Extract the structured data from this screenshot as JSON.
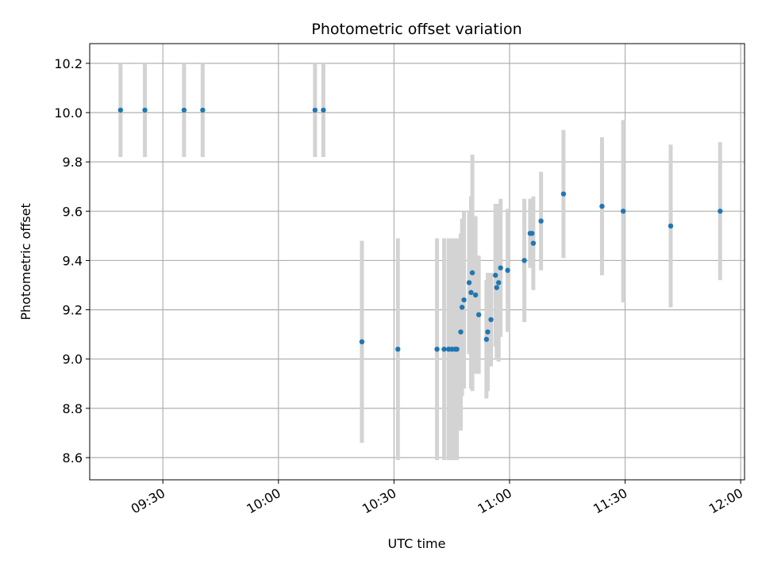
{
  "chart_data": {
    "type": "scatter",
    "title": "Photometric offset variation",
    "xlabel": "UTC time",
    "ylabel": "Photometric offset",
    "xlim": [
      "09:11",
      "12:01"
    ],
    "ylim": [
      8.51,
      10.28
    ],
    "x_ticks": [
      "09:30",
      "10:00",
      "10:30",
      "11:00",
      "11:30",
      "12:00"
    ],
    "y_ticks": [
      "8.6",
      "8.8",
      "9.0",
      "9.2",
      "9.4",
      "9.6",
      "9.8",
      "10.0",
      "10.2"
    ],
    "grid": true,
    "colors": {
      "marker": "#1f77b4",
      "errorbar": "#d3d3d3",
      "grid": "#b0b0b0"
    },
    "series": [
      {
        "points": [
          {
            "x": "09:19:00",
            "y": 10.01,
            "err": 0.19
          },
          {
            "x": "09:25:20",
            "y": 10.01,
            "err": 0.19
          },
          {
            "x": "09:35:30",
            "y": 10.01,
            "err": 0.19
          },
          {
            "x": "09:40:20",
            "y": 10.01,
            "err": 0.19
          },
          {
            "x": "10:09:30",
            "y": 10.01,
            "err": 0.19
          },
          {
            "x": "10:11:40",
            "y": 10.01,
            "err": 0.19
          },
          {
            "x": "10:21:40",
            "y": 9.07,
            "err": 0.41
          },
          {
            "x": "10:31:00",
            "y": 9.04,
            "err": 0.45
          },
          {
            "x": "10:41:10",
            "y": 9.04,
            "err": 0.45
          },
          {
            "x": "10:43:00",
            "y": 9.04,
            "err": 0.45
          },
          {
            "x": "10:44:10",
            "y": 9.04,
            "err": 0.45
          },
          {
            "x": "10:45:00",
            "y": 9.04,
            "err": 0.45
          },
          {
            "x": "10:45:50",
            "y": 9.04,
            "err": 0.45
          },
          {
            "x": "10:46:20",
            "y": 9.04,
            "err": 0.45
          },
          {
            "x": "10:47:20",
            "y": 9.11,
            "err": 0.4
          },
          {
            "x": "10:47:40",
            "y": 9.21,
            "err": 0.36
          },
          {
            "x": "10:48:10",
            "y": 9.24,
            "err": 0.36
          },
          {
            "x": "10:49:30",
            "y": 9.31,
            "err": 0.29
          },
          {
            "x": "10:50:00",
            "y": 9.27,
            "err": 0.39
          },
          {
            "x": "10:50:20",
            "y": 9.35,
            "err": 0.48
          },
          {
            "x": "10:51:10",
            "y": 9.26,
            "err": 0.32
          },
          {
            "x": "10:52:00",
            "y": 9.18,
            "err": 0.24
          },
          {
            "x": "10:54:00",
            "y": 9.08,
            "err": 0.24
          },
          {
            "x": "10:54:20",
            "y": 9.11,
            "err": 0.24
          },
          {
            "x": "10:55:10",
            "y": 9.16,
            "err": 0.19
          },
          {
            "x": "10:56:20",
            "y": 9.34,
            "err": 0.29
          },
          {
            "x": "10:56:40",
            "y": 9.29,
            "err": 0.29
          },
          {
            "x": "10:57:10",
            "y": 9.31,
            "err": 0.32
          },
          {
            "x": "10:57:40",
            "y": 9.37,
            "err": 0.28
          },
          {
            "x": "10:59:30",
            "y": 9.36,
            "err": 0.25
          },
          {
            "x": "11:03:50",
            "y": 9.4,
            "err": 0.25
          },
          {
            "x": "11:05:20",
            "y": 9.51,
            "err": 0.14
          },
          {
            "x": "11:05:50",
            "y": 9.51,
            "err": 0.14
          },
          {
            "x": "11:06:10",
            "y": 9.47,
            "err": 0.19
          },
          {
            "x": "11:08:10",
            "y": 9.56,
            "err": 0.2
          },
          {
            "x": "11:14:00",
            "y": 9.67,
            "err": 0.26
          },
          {
            "x": "11:24:00",
            "y": 9.62,
            "err": 0.28
          },
          {
            "x": "11:29:30",
            "y": 9.6,
            "err": 0.37
          },
          {
            "x": "11:41:50",
            "y": 9.54,
            "err": 0.33
          },
          {
            "x": "11:54:40",
            "y": 9.6,
            "err": 0.28
          }
        ]
      }
    ]
  }
}
